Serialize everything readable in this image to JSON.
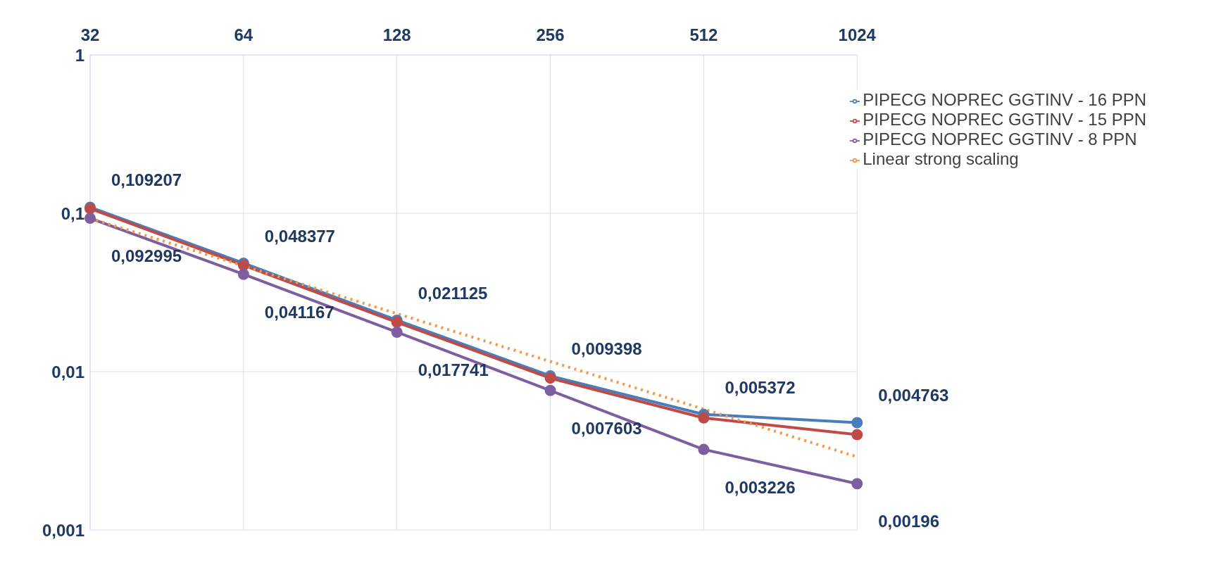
{
  "chart_data": {
    "type": "line",
    "categories": [
      "32",
      "64",
      "128",
      "256",
      "512",
      "1024"
    ],
    "log": "y",
    "ylim": [
      0.001,
      1
    ],
    "yticks": [
      {
        "value": 0.001,
        "label": "0,001"
      },
      {
        "value": 0.01,
        "label": "0,01"
      },
      {
        "value": 0.1,
        "label": "0,1"
      },
      {
        "value": 1,
        "label": "1"
      }
    ],
    "grid": true,
    "legend": "top right",
    "marker": "circle",
    "series": [
      {
        "name": "PIPECG NOPREC GGTINV - 16 PPN",
        "color": "#4a7ebb",
        "values": [
          0.109207,
          0.048377,
          0.021125,
          0.009398,
          0.005372,
          0.004763
        ],
        "value_labels": [
          "0,109207",
          "0,048377",
          "0,021125",
          "0,009398",
          "0,005372",
          "0,004763"
        ]
      },
      {
        "name": "PIPECG NOPREC GGTINV - 15 PPN",
        "color": "#be4b48",
        "values": [
          0.107,
          0.047,
          0.0205,
          0.0091,
          0.0051,
          0.004
        ]
      },
      {
        "name": "PIPECG NOPREC GGTINV - 8 PPN",
        "color": "#7d5fa0",
        "values": [
          0.092995,
          0.041167,
          0.017741,
          0.007603,
          0.003226,
          0.00196
        ],
        "value_labels": [
          "0,092995",
          "0,041167",
          "0,017741",
          "0,007603",
          "0,003226",
          "0,00196"
        ]
      },
      {
        "name": "Linear strong scaling",
        "color": "#f79646",
        "values": [
          0.093,
          0.0465,
          0.02325,
          0.0116,
          0.0058,
          0.0029
        ],
        "marker": "none",
        "line_style": "dotted"
      }
    ]
  }
}
